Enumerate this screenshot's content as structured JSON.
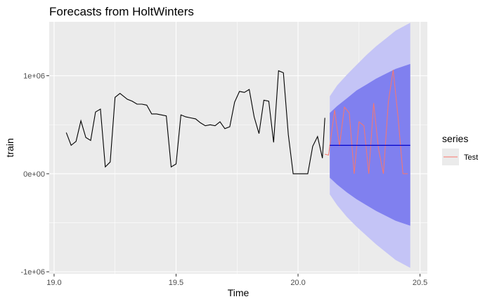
{
  "chart_data": {
    "type": "line",
    "title": "Forecasts from HoltWinters",
    "xlabel": "Time",
    "ylabel": "train",
    "xlim": [
      18.98,
      20.53
    ],
    "ylim": [
      -1020000,
      1550000
    ],
    "x_ticks": [
      19.0,
      19.5,
      20.0,
      20.5
    ],
    "x_tick_labels": [
      "19.0",
      "19.5",
      "20.0",
      "20.5"
    ],
    "y_ticks": [
      -1000000,
      0,
      1000000
    ],
    "y_tick_labels": [
      "-1e+06",
      "0e+00",
      "1e+06"
    ],
    "grid": true,
    "legend": {
      "title": "series",
      "position": "right",
      "entries": [
        {
          "label": "Test",
          "color": "#F8766D"
        }
      ]
    },
    "colors": {
      "panel": "#EBEBEB",
      "grid": "#FFFFFF",
      "train_line": "#000000",
      "test_line": "#F8766D",
      "forecast_line": "#0000CC",
      "band_95": "#C4C4F6",
      "band_80": "#8080EF"
    },
    "train": {
      "x": [
        19.05,
        19.07,
        19.09,
        19.11,
        19.13,
        19.15,
        19.17,
        19.19,
        19.21,
        19.23,
        19.25,
        19.27,
        19.3,
        19.32,
        19.34,
        19.36,
        19.38,
        19.4,
        19.42,
        19.44,
        19.46,
        19.48,
        19.5,
        19.52,
        19.54,
        19.56,
        19.58,
        19.6,
        19.62,
        19.64,
        19.66,
        19.68,
        19.7,
        19.72,
        19.74,
        19.76,
        19.78,
        19.8,
        19.82,
        19.84,
        19.86,
        19.88,
        19.9,
        19.92,
        19.94,
        19.96,
        19.98,
        20.0,
        20.02,
        20.04,
        20.06,
        20.08,
        20.1
      ],
      "y": [
        420000,
        290000,
        330000,
        540000,
        370000,
        340000,
        630000,
        660000,
        70000,
        120000,
        780000,
        820000,
        760000,
        740000,
        710000,
        710000,
        700000,
        610000,
        610000,
        600000,
        590000,
        70000,
        100000,
        600000,
        580000,
        570000,
        560000,
        520000,
        490000,
        500000,
        490000,
        530000,
        460000,
        480000,
        730000,
        840000,
        830000,
        860000,
        580000,
        410000,
        750000,
        740000,
        320000,
        1050000,
        1030000,
        400000,
        0,
        0,
        0,
        0,
        280000,
        380000,
        160000
      ]
    },
    "train_tail": {
      "x": [
        20.1,
        20.11
      ],
      "y": [
        160000,
        570000
      ]
    },
    "test": {
      "x": [
        20.11,
        20.125,
        20.15,
        20.17,
        20.19,
        20.21,
        20.23,
        20.25,
        20.27,
        20.29,
        20.31,
        20.33,
        20.35,
        20.37,
        20.39,
        20.41,
        20.43,
        20.45
      ],
      "y": [
        200000,
        190000,
        650000,
        280000,
        680000,
        620000,
        0,
        530000,
        490000,
        0,
        720000,
        250000,
        0,
        730000,
        1060000,
        580000,
        0,
        0
      ]
    },
    "forecast": {
      "x": [
        20.13,
        20.46
      ],
      "y": [
        290000,
        290000
      ]
    },
    "interval_80": {
      "x": [
        20.13,
        20.16,
        20.2,
        20.24,
        20.28,
        20.32,
        20.36,
        20.4,
        20.46
      ],
      "upper": [
        620000,
        690000,
        770000,
        850000,
        910000,
        970000,
        1020000,
        1070000,
        1120000
      ],
      "lower": [
        -40000,
        -110000,
        -190000,
        -260000,
        -320000,
        -380000,
        -430000,
        -480000,
        -530000
      ]
    },
    "interval_95": {
      "x": [
        20.13,
        20.16,
        20.2,
        20.24,
        20.28,
        20.32,
        20.36,
        20.4,
        20.46
      ],
      "upper": [
        790000,
        900000,
        1010000,
        1110000,
        1210000,
        1300000,
        1380000,
        1460000,
        1540000
      ],
      "lower": [
        -210000,
        -320000,
        -440000,
        -540000,
        -630000,
        -720000,
        -800000,
        -880000,
        -960000
      ]
    }
  }
}
